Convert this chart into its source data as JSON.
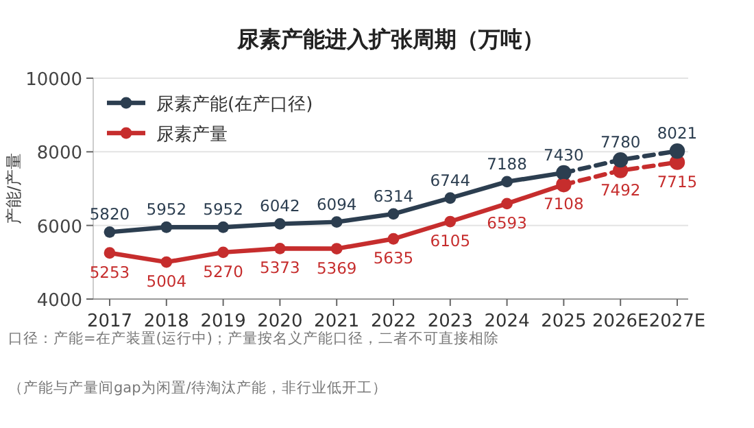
{
  "chart_data": {
    "type": "line",
    "title": "尿素产能进入扩张周期（万吨）",
    "ylabel": "产能/产量",
    "categories": [
      "2017",
      "2018",
      "2019",
      "2020",
      "2021",
      "2022",
      "2023",
      "2024",
      "2025",
      "2026E",
      "2027E"
    ],
    "series": [
      {
        "name": "尿素产能(在产口径)",
        "color": "#2c3e50",
        "values": [
          5820,
          5952,
          5952,
          6042,
          6094,
          6314,
          6744,
          7188,
          7430,
          null,
          null
        ],
        "value_labels": [
          "5820",
          "5952",
          "5952",
          "6042",
          "6094",
          "6314",
          "6744",
          "7188",
          "7430",
          null,
          null
        ]
      },
      {
        "name": "尿素产量",
        "color": "#c62d2d",
        "values": [
          5253,
          5004,
          5270,
          5373,
          5369,
          5635,
          6105,
          6593,
          7108,
          null,
          null
        ],
        "value_labels": [
          "5253",
          "5004",
          "5270",
          "5373",
          "5369",
          "5635",
          "6105",
          "6593",
          "7108",
          null,
          null
        ]
      },
      {
        "color": "#2c3e50",
        "line_style": "dashed",
        "values": [
          null,
          null,
          null,
          null,
          null,
          null,
          null,
          null,
          7430,
          7780,
          8021
        ],
        "value_labels": [
          null,
          null,
          null,
          null,
          null,
          null,
          null,
          null,
          null,
          "7780",
          "8021"
        ]
      },
      {
        "color": "#c62d2d",
        "line_style": "dashed",
        "values": [
          null,
          null,
          null,
          null,
          null,
          null,
          null,
          null,
          7108,
          7492,
          7715
        ],
        "value_labels": [
          null,
          null,
          null,
          null,
          null,
          null,
          null,
          null,
          null,
          "7492",
          "7715"
        ]
      }
    ],
    "ylim": [
      4000,
      10000
    ],
    "yticks": [
      4000,
      6000,
      8000,
      10000
    ],
    "grid": "y",
    "legend": "top left",
    "marker": "circle",
    "annotations": [
      "口径：产能=在产装置(运行中)；产量按名义产能口径，二者不可直接相除",
      "（产能与产量间gap为闲置/待淘汰产能，非行业低开工）"
    ]
  }
}
